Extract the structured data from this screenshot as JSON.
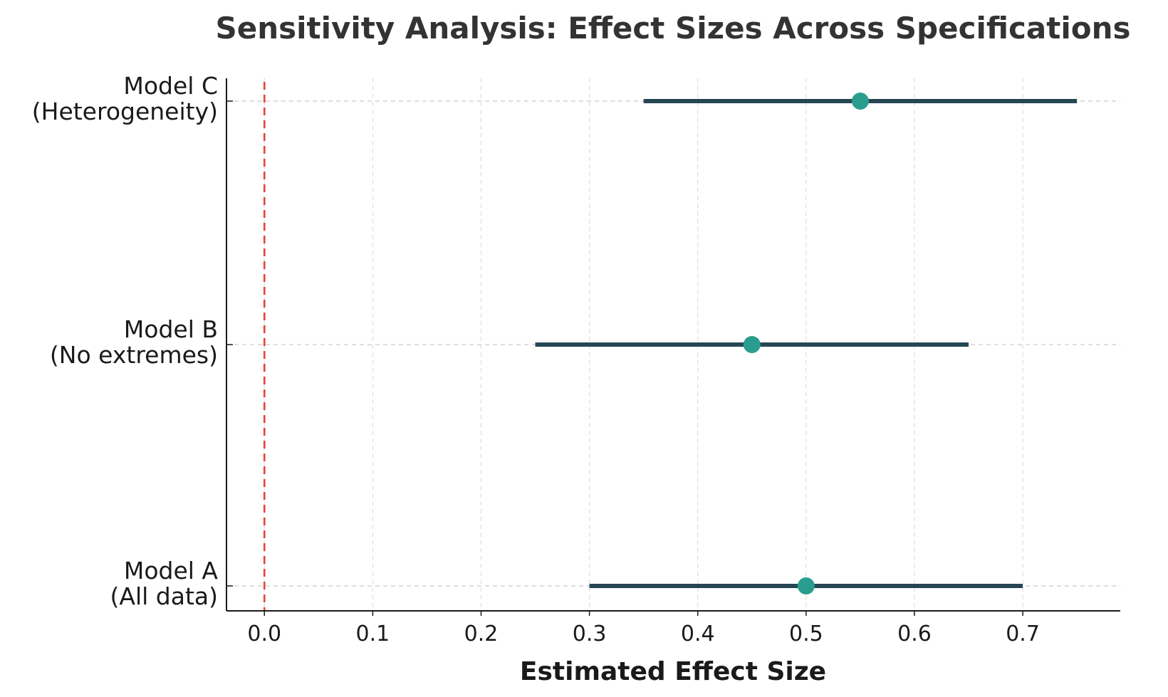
{
  "chart_data": {
    "type": "forest",
    "title": "Sensitivity Analysis: Effect Sizes Across Specifications",
    "xlabel": "Estimated Effect Size",
    "ylabel": "",
    "xlim": [
      -0.035,
      0.79
    ],
    "xticks": [
      0.0,
      0.1,
      0.2,
      0.3,
      0.4,
      0.5,
      0.6,
      0.7
    ],
    "xtick_labels": [
      "0.0",
      "0.1",
      "0.2",
      "0.3",
      "0.4",
      "0.5",
      "0.6",
      "0.7"
    ],
    "reference_line": {
      "x": 0.0,
      "style": "dashed",
      "color": "#e8413a"
    },
    "grid": "on (dashed)",
    "legend": "none",
    "colors": {
      "interval": "#264653",
      "point": "#2a9d8f",
      "grid": "#cccccc",
      "axis": "#1a1a1a"
    },
    "series": [
      {
        "name": "Model A",
        "label_lines": [
          "Model A",
          "(All data)"
        ],
        "estimate": 0.5,
        "ci_low": 0.3,
        "ci_high": 0.7
      },
      {
        "name": "Model B",
        "label_lines": [
          "Model B",
          "(No extremes)"
        ],
        "estimate": 0.45,
        "ci_low": 0.25,
        "ci_high": 0.65
      },
      {
        "name": "Model C",
        "label_lines": [
          "Model C",
          "(Heterogeneity)"
        ],
        "estimate": 0.55,
        "ci_low": 0.35,
        "ci_high": 0.75
      }
    ]
  }
}
